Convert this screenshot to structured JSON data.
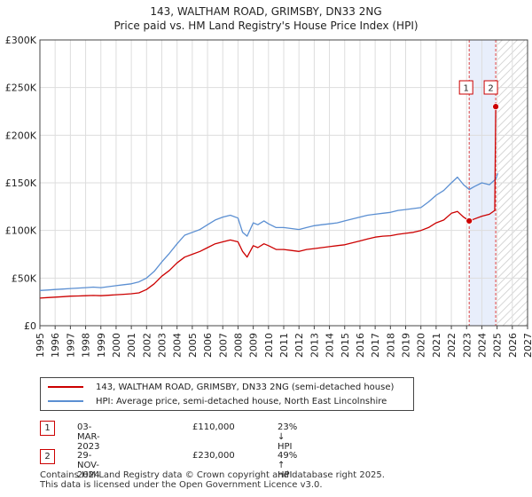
{
  "title": {
    "line1": "143, WALTHAM ROAD, GRIMSBY, DN33 2NG",
    "line2": "Price paid vs. HM Land Registry's House Price Index (HPI)"
  },
  "chart_data": {
    "type": "line",
    "title": "143, WALTHAM ROAD, GRIMSBY, DN33 2NG — Price paid vs. HM Land Registry's House Price Index (HPI)",
    "xlabel": "",
    "ylabel": "",
    "xlim": [
      1995,
      2027
    ],
    "ylim": [
      0,
      300000
    ],
    "x_ticks": [
      1995,
      1996,
      1997,
      1998,
      1999,
      2000,
      2001,
      2002,
      2003,
      2004,
      2005,
      2006,
      2007,
      2008,
      2009,
      2010,
      2011,
      2012,
      2013,
      2014,
      2015,
      2016,
      2017,
      2018,
      2019,
      2020,
      2021,
      2022,
      2023,
      2024,
      2025,
      2026,
      2027
    ],
    "y_ticks": [
      {
        "value": 0,
        "label": "£0"
      },
      {
        "value": 50000,
        "label": "£50K"
      },
      {
        "value": 100000,
        "label": "£100K"
      },
      {
        "value": 150000,
        "label": "£150K"
      },
      {
        "value": 200000,
        "label": "£200K"
      },
      {
        "value": 250000,
        "label": "£250K"
      },
      {
        "value": 300000,
        "label": "£300K"
      }
    ],
    "grid": true,
    "shaded_period": [
      2023.17,
      2024.91
    ],
    "future_hatch_from": 2025.05,
    "series": [
      {
        "name": "143, WALTHAM ROAD, GRIMSBY, DN33 2NG (semi-detached house)",
        "color": "#cc0000",
        "x": [
          1995,
          1995.5,
          1996,
          1996.5,
          1997,
          1997.5,
          1998,
          1998.5,
          1999,
          1999.5,
          2000,
          2000.5,
          2001,
          2001.5,
          2002,
          2002.5,
          2003,
          2003.5,
          2004,
          2004.5,
          2005,
          2005.5,
          2006,
          2006.5,
          2007,
          2007.5,
          2008,
          2008.3,
          2008.6,
          2009,
          2009.3,
          2009.7,
          2010,
          2010.5,
          2011,
          2011.5,
          2012,
          2012.5,
          2013,
          2013.5,
          2014,
          2014.5,
          2015,
          2015.5,
          2016,
          2016.5,
          2017,
          2017.5,
          2018,
          2018.5,
          2019,
          2019.5,
          2020,
          2020.5,
          2021,
          2021.5,
          2022,
          2022.4,
          2022.8,
          2023.17,
          2023.5,
          2024,
          2024.5,
          2024.85,
          2024.91,
          2025.05
        ],
        "values": [
          29000,
          29500,
          30000,
          30500,
          31000,
          31200,
          31500,
          31800,
          31500,
          32000,
          32500,
          33000,
          33500,
          34500,
          38000,
          44000,
          52000,
          58000,
          66000,
          72000,
          75000,
          78000,
          82000,
          86000,
          88000,
          90000,
          88000,
          78000,
          72000,
          84000,
          82000,
          86000,
          84000,
          80000,
          80000,
          79000,
          78000,
          80000,
          81000,
          82000,
          83000,
          84000,
          85000,
          87000,
          89000,
          91000,
          93000,
          94000,
          94500,
          96000,
          97000,
          98000,
          100000,
          103000,
          108000,
          111000,
          118000,
          120000,
          114000,
          110000,
          112000,
          115000,
          117000,
          121000,
          230000,
          232000
        ]
      },
      {
        "name": "HPI: Average price, semi-detached house, North East Lincolnshire",
        "color": "#5b8fd2",
        "x": [
          1995,
          1995.5,
          1996,
          1996.5,
          1997,
          1997.5,
          1998,
          1998.5,
          1999,
          1999.5,
          2000,
          2000.5,
          2001,
          2001.5,
          2002,
          2002.5,
          2003,
          2003.5,
          2004,
          2004.5,
          2005,
          2005.5,
          2006,
          2006.5,
          2007,
          2007.5,
          2008,
          2008.3,
          2008.6,
          2009,
          2009.3,
          2009.7,
          2010,
          2010.5,
          2011,
          2011.5,
          2012,
          2012.5,
          2013,
          2013.5,
          2014,
          2014.5,
          2015,
          2015.5,
          2016,
          2016.5,
          2017,
          2017.5,
          2018,
          2018.5,
          2019,
          2019.5,
          2020,
          2020.5,
          2021,
          2021.5,
          2022,
          2022.4,
          2022.8,
          2023.17,
          2023.5,
          2024,
          2024.5,
          2024.91,
          2025.05
        ],
        "values": [
          37000,
          37500,
          38000,
          38500,
          39000,
          39500,
          40000,
          40500,
          40000,
          41000,
          42000,
          43000,
          44000,
          46000,
          50000,
          57000,
          67000,
          76000,
          86000,
          95000,
          98000,
          101000,
          106000,
          111000,
          114000,
          116000,
          113000,
          98000,
          94000,
          108000,
          106000,
          110000,
          107000,
          103000,
          103000,
          102000,
          101000,
          103000,
          105000,
          106000,
          107000,
          108000,
          110000,
          112000,
          114000,
          116000,
          117000,
          118000,
          119000,
          121000,
          122000,
          123000,
          124000,
          130000,
          137000,
          142000,
          150000,
          156000,
          148000,
          143000,
          146000,
          150000,
          148000,
          154000,
          160000
        ]
      }
    ],
    "markers": [
      {
        "id": "1",
        "x": 2023.17,
        "value": 110000
      },
      {
        "id": "2",
        "x": 2024.91,
        "value": 230000
      }
    ]
  },
  "legend": {
    "items": [
      {
        "label": "143, WALTHAM ROAD, GRIMSBY, DN33 2NG (semi-detached house)",
        "color": "#cc0000"
      },
      {
        "label": "HPI: Average price, semi-detached house, North East Lincolnshire",
        "color": "#5b8fd2"
      }
    ]
  },
  "sales": [
    {
      "num": "1",
      "date": "03-MAR-2023",
      "price": "£110,000",
      "hpi": "23% ↓ HPI"
    },
    {
      "num": "2",
      "date": "29-NOV-2024",
      "price": "£230,000",
      "hpi": "49% ↑ HPI"
    }
  ],
  "footer": {
    "line1": "Contains HM Land Registry data © Crown copyright and database right 2025.",
    "line2": "This data is licensed under the Open Government Licence v3.0."
  }
}
